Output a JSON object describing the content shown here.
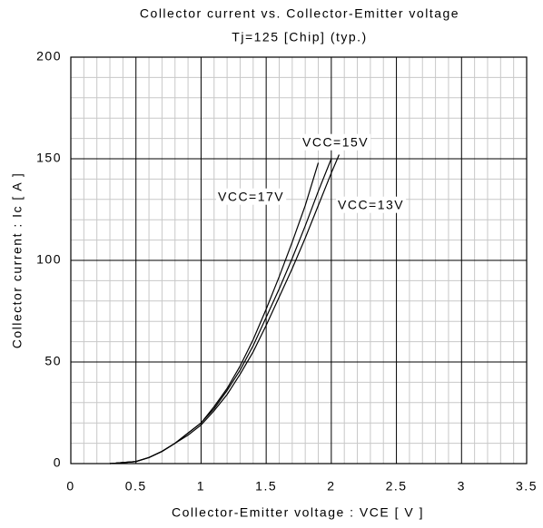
{
  "chart_data": {
    "type": "line",
    "title": "Collector current vs. Collector-Emitter voltage",
    "subtitle": "Tj=125  [Chip] (typ.)",
    "x_label": "Collector-Emitter voltage : VCE [ V ]",
    "y_label": "Collector current : Ic [ A ]",
    "x": [
      0.3,
      0.5,
      0.6,
      0.7,
      0.8,
      0.9,
      1.0,
      1.1,
      1.2,
      1.3,
      1.4,
      1.5,
      1.6,
      1.7,
      1.8,
      1.9,
      2.0,
      2.06
    ],
    "series": [
      {
        "name": "VCC=15V",
        "color": "#000000",
        "values": [
          0,
          1,
          3,
          6,
          10,
          15,
          20,
          27,
          36,
          46,
          58,
          72,
          86,
          101,
          117,
          134,
          150,
          null
        ]
      },
      {
        "name": "VCC=17V",
        "color": "#000000",
        "values": [
          0,
          1,
          3,
          6,
          10,
          15,
          20,
          28,
          37,
          48,
          61,
          76,
          92,
          109,
          127,
          148,
          null,
          null
        ]
      },
      {
        "name": "VCC=13V",
        "color": "#000000",
        "values": [
          0,
          1,
          3,
          6,
          10,
          14,
          19,
          26,
          34,
          44,
          55,
          68,
          82,
          96,
          111,
          127,
          143,
          152
        ]
      }
    ],
    "xlim": [
      0,
      3.5
    ],
    "xticks": [
      0,
      0.5,
      1,
      1.5,
      2,
      2.5,
      3,
      3.5
    ],
    "ylim": [
      0,
      200
    ],
    "yticks": [
      0,
      50,
      100,
      150,
      200
    ],
    "grid": true,
    "minor_grid": true
  }
}
